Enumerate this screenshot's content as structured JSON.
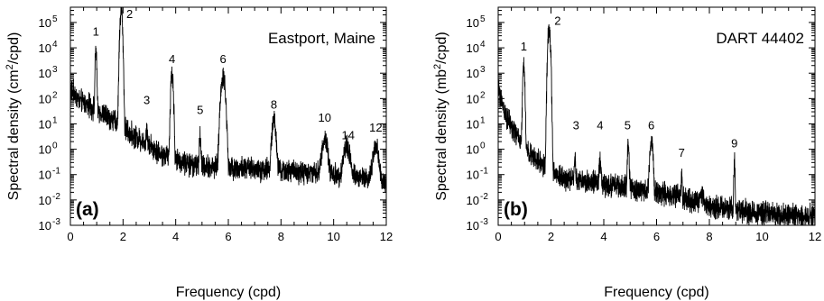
{
  "chart_data": [
    {
      "type": "line",
      "panel_letter": "(a)",
      "station_label": "Eastport, Maine",
      "xlabel": "Frequency (cpd)",
      "ylabel_prefix": "Spectral density (cm",
      "ylabel_sup": "2",
      "ylabel_suffix": "/cpd)",
      "xlim": [
        0,
        12
      ],
      "ylim": [
        0.001,
        400000
      ],
      "yscale": "log",
      "x_ticks": [
        0,
        2,
        4,
        6,
        8,
        10,
        12
      ],
      "y_ticks": [
        0.001,
        0.01,
        0.1,
        1,
        10,
        100,
        1000,
        10000,
        100000
      ],
      "x_tick_labels": [
        "0",
        "2",
        "4",
        "6",
        "8",
        "10",
        "12"
      ],
      "y_tick_labels": [
        [
          "10",
          "-3"
        ],
        [
          "10",
          "-2"
        ],
        [
          "10",
          "-1"
        ],
        [
          "10",
          "0"
        ],
        [
          "10",
          "1"
        ],
        [
          "10",
          "2"
        ],
        [
          "10",
          "3"
        ],
        [
          "10",
          "4"
        ],
        [
          "10",
          "5"
        ]
      ],
      "series": [
        {
          "color": "#000000",
          "background": [
            [
              0.02,
              200
            ],
            [
              0.1,
              180
            ],
            [
              0.3,
              90
            ],
            [
              0.6,
              60
            ],
            [
              0.9,
              40
            ],
            [
              1.2,
              25
            ],
            [
              1.6,
              15
            ],
            [
              1.8,
              10
            ],
            [
              2.2,
              5
            ],
            [
              2.5,
              3
            ],
            [
              3.0,
              1.5
            ],
            [
              3.5,
              0.6
            ],
            [
              4.5,
              0.25
            ],
            [
              5.5,
              0.2
            ],
            [
              6.5,
              0.18
            ],
            [
              8,
              0.14
            ],
            [
              9,
              0.12
            ],
            [
              10,
              0.1
            ],
            [
              11,
              0.08
            ],
            [
              12,
              0.05
            ]
          ],
          "peaks": [
            {
              "freq": 0.97,
              "amp": 8000,
              "width": 0.025
            },
            {
              "freq": 1.93,
              "amp": 320000,
              "width": 0.04
            },
            {
              "freq": 2.9,
              "amp": 6,
              "width": 0.03
            },
            {
              "freq": 3.86,
              "amp": 1000,
              "width": 0.04
            },
            {
              "freq": 4.93,
              "amp": 3,
              "width": 0.03
            },
            {
              "freq": 5.8,
              "amp": 700,
              "width": 0.07
            },
            {
              "freq": 7.73,
              "amp": 12,
              "width": 0.07
            },
            {
              "freq": 9.66,
              "amp": 2.5,
              "width": 0.1
            },
            {
              "freq": 10.5,
              "amp": 1.2,
              "width": 0.12
            },
            {
              "freq": 11.6,
              "amp": 1.2,
              "width": 0.1
            }
          ]
        }
      ],
      "annotations": [
        {
          "text": "1",
          "x": 0.97,
          "y": 30000
        },
        {
          "text": "2",
          "x": 2.25,
          "y": 150000
        },
        {
          "text": "3",
          "x": 2.9,
          "y": 60
        },
        {
          "text": "4",
          "x": 3.86,
          "y": 2500
        },
        {
          "text": "5",
          "x": 4.93,
          "y": 25
        },
        {
          "text": "6",
          "x": 5.8,
          "y": 2500
        },
        {
          "text": "8",
          "x": 7.73,
          "y": 40
        },
        {
          "text": "10",
          "x": 9.66,
          "y": 12
        },
        {
          "text": "14",
          "x": 10.55,
          "y": 2.5
        },
        {
          "text": "12",
          "x": 11.6,
          "y": 5
        }
      ]
    },
    {
      "type": "line",
      "panel_letter": "(b)",
      "station_label": "DART 44402",
      "xlabel": "Frequency (cpd)",
      "ylabel_prefix": "Spectral density (mb",
      "ylabel_sup": "2",
      "ylabel_suffix": "/cpd)",
      "xlim": [
        0,
        12
      ],
      "ylim": [
        0.001,
        400000
      ],
      "yscale": "log",
      "x_ticks": [
        0,
        2,
        4,
        6,
        8,
        10,
        12
      ],
      "y_ticks": [
        0.001,
        0.01,
        0.1,
        1,
        10,
        100,
        1000,
        10000,
        100000
      ],
      "x_tick_labels": [
        "0",
        "2",
        "4",
        "6",
        "8",
        "10",
        "12"
      ],
      "y_tick_labels": [
        [
          "10",
          "-3"
        ],
        [
          "10",
          "-2"
        ],
        [
          "10",
          "-1"
        ],
        [
          "10",
          "0"
        ],
        [
          "10",
          "1"
        ],
        [
          "10",
          "2"
        ],
        [
          "10",
          "3"
        ],
        [
          "10",
          "4"
        ],
        [
          "10",
          "5"
        ]
      ],
      "series": [
        {
          "color": "#000000",
          "background": [
            [
              0.02,
              200
            ],
            [
              0.1,
              100
            ],
            [
              0.3,
              20
            ],
            [
              0.6,
              5
            ],
            [
              0.9,
              2
            ],
            [
              1.2,
              0.6
            ],
            [
              1.6,
              0.3
            ],
            [
              1.8,
              0.2
            ],
            [
              2.2,
              0.1
            ],
            [
              2.5,
              0.07
            ],
            [
              3,
              0.06
            ],
            [
              4,
              0.04
            ],
            [
              5,
              0.03
            ],
            [
              6,
              0.02
            ],
            [
              7,
              0.012
            ],
            [
              8,
              0.006
            ],
            [
              9,
              0.004
            ],
            [
              10,
              0.003
            ],
            [
              11,
              0.0025
            ],
            [
              12,
              0.0022
            ]
          ],
          "peaks": [
            {
              "freq": 0.97,
              "amp": 2200,
              "width": 0.03
            },
            {
              "freq": 1.93,
              "amp": 60000,
              "width": 0.04
            },
            {
              "freq": 2.9,
              "amp": 0.3,
              "width": 0.03
            },
            {
              "freq": 3.86,
              "amp": 0.3,
              "width": 0.04
            },
            {
              "freq": 4.93,
              "amp": 1.2,
              "width": 0.03
            },
            {
              "freq": 5.8,
              "amp": 2.5,
              "width": 0.05
            },
            {
              "freq": 6.95,
              "amp": 0.1,
              "width": 0.02
            },
            {
              "freq": 7.7,
              "amp": 0.01,
              "width": 0.07
            },
            {
              "freq": 8.95,
              "amp": 0.35,
              "width": 0.02
            }
          ]
        }
      ],
      "annotations": [
        {
          "text": "1",
          "x": 0.97,
          "y": 8000
        },
        {
          "text": "2",
          "x": 2.25,
          "y": 80000
        },
        {
          "text": "3",
          "x": 2.95,
          "y": 6
        },
        {
          "text": "4",
          "x": 3.86,
          "y": 6
        },
        {
          "text": "5",
          "x": 4.9,
          "y": 6
        },
        {
          "text": "6",
          "x": 5.8,
          "y": 6
        },
        {
          "text": "7",
          "x": 6.95,
          "y": 0.5
        },
        {
          "text": "9",
          "x": 8.95,
          "y": 1.2
        }
      ]
    }
  ]
}
